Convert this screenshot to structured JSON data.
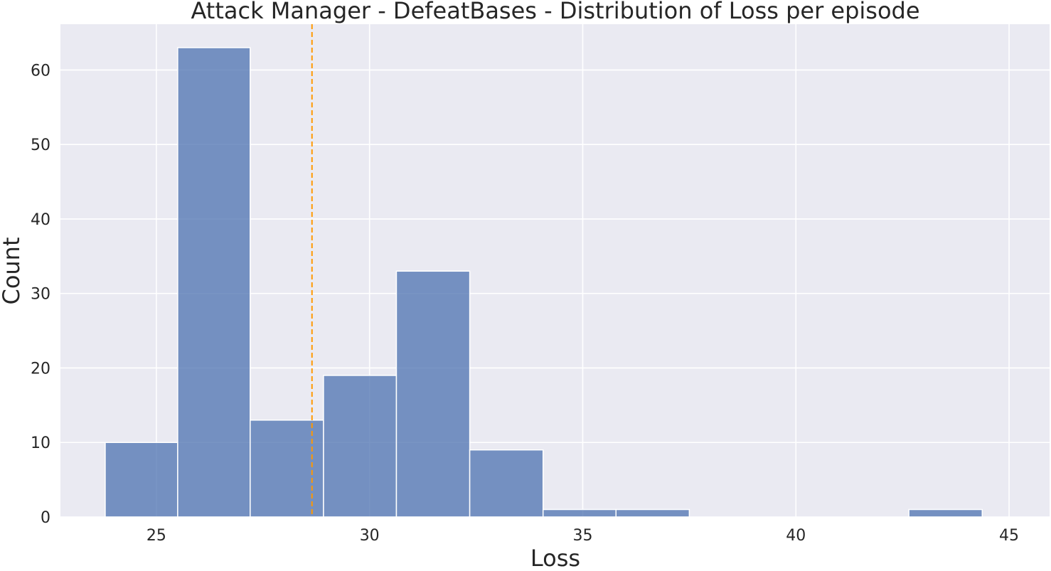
{
  "chart_data": {
    "type": "bar",
    "title": "Attack Manager - DefeatBases - Distribution of Loss per episode",
    "xlabel": "Loss",
    "ylabel": "Count",
    "xlim": [
      22.75,
      45.95
    ],
    "ylim": [
      0,
      66.15
    ],
    "xticks": [
      25,
      30,
      35,
      40,
      45
    ],
    "yticks": [
      0,
      10,
      20,
      30,
      40,
      50,
      60
    ],
    "grid": true,
    "bins": [
      {
        "x0": 23.8,
        "x1": 25.5,
        "count": 10
      },
      {
        "x0": 25.5,
        "x1": 27.2,
        "count": 63
      },
      {
        "x0": 27.2,
        "x1": 28.92,
        "count": 13
      },
      {
        "x0": 28.92,
        "x1": 30.63,
        "count": 19
      },
      {
        "x0": 30.63,
        "x1": 32.35,
        "count": 33
      },
      {
        "x0": 32.35,
        "x1": 34.07,
        "count": 9
      },
      {
        "x0": 34.07,
        "x1": 35.78,
        "count": 1
      },
      {
        "x0": 35.78,
        "x1": 37.5,
        "count": 1
      },
      {
        "x0": 37.5,
        "x1": 39.22,
        "count": 0
      },
      {
        "x0": 39.22,
        "x1": 40.93,
        "count": 0
      },
      {
        "x0": 40.93,
        "x1": 42.65,
        "count": 0
      },
      {
        "x0": 42.65,
        "x1": 44.37,
        "count": 1
      }
    ],
    "mean_line": {
      "x": 28.65,
      "color": "#ff9900",
      "style": "dashed"
    },
    "colors": {
      "bar_fill": "#4c72b0",
      "bar_stroke": "#ffffff",
      "background": "#eaeaf2",
      "grid": "#ffffff"
    }
  }
}
